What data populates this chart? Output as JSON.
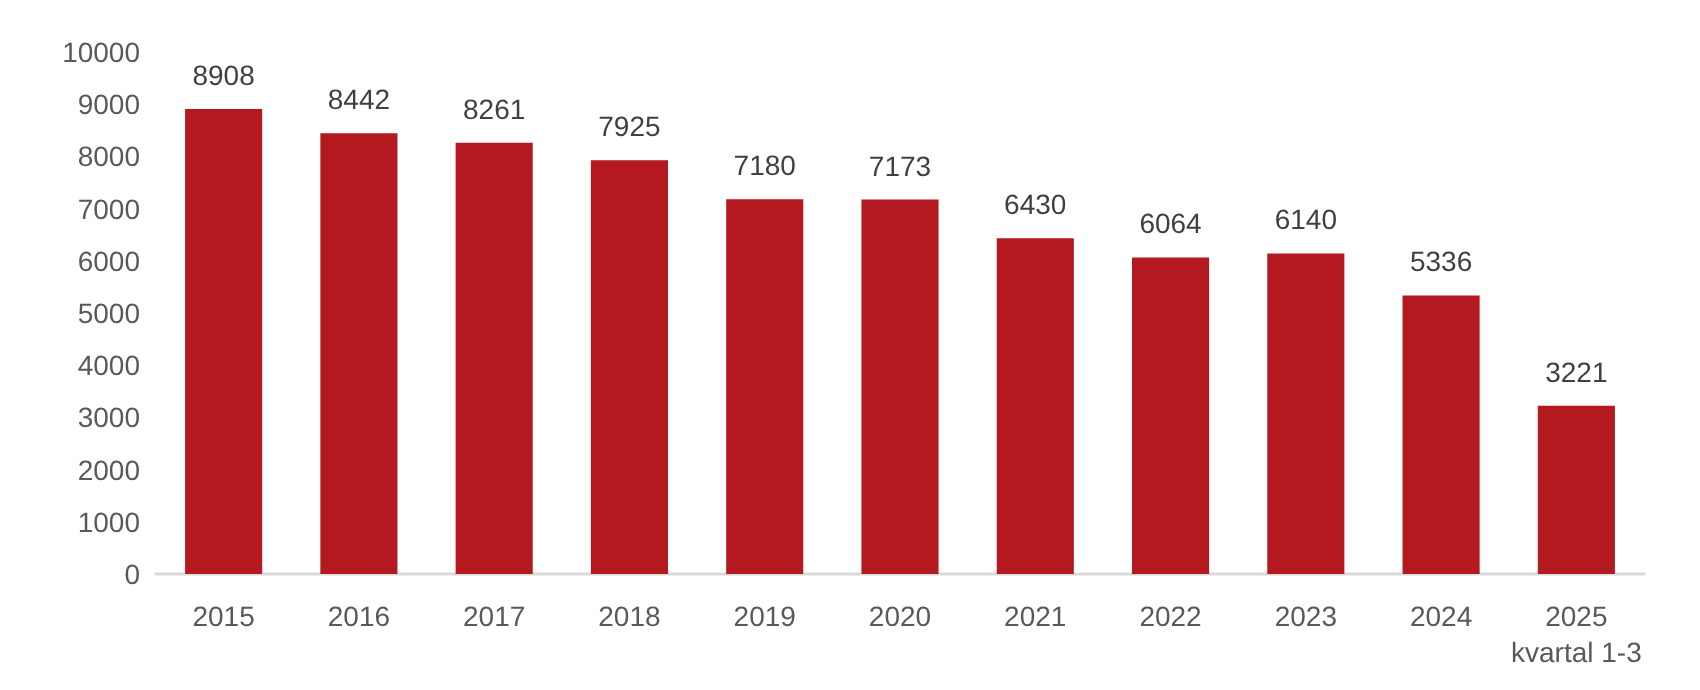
{
  "chart_data": {
    "type": "bar",
    "categories": [
      "2015",
      "2016",
      "2017",
      "2018",
      "2019",
      "2020",
      "2021",
      "2022",
      "2023",
      "2024",
      "2025\nkvartal 1-3"
    ],
    "values": [
      8908,
      8442,
      8261,
      7925,
      7180,
      7173,
      6430,
      6064,
      6140,
      5336,
      3221
    ],
    "color": "#b3191e",
    "ylim": [
      0,
      10000
    ],
    "yticks": [
      0,
      1000,
      2000,
      3000,
      4000,
      5000,
      6000,
      7000,
      8000,
      9000,
      10000
    ],
    "grid": false,
    "data_labels": true
  }
}
